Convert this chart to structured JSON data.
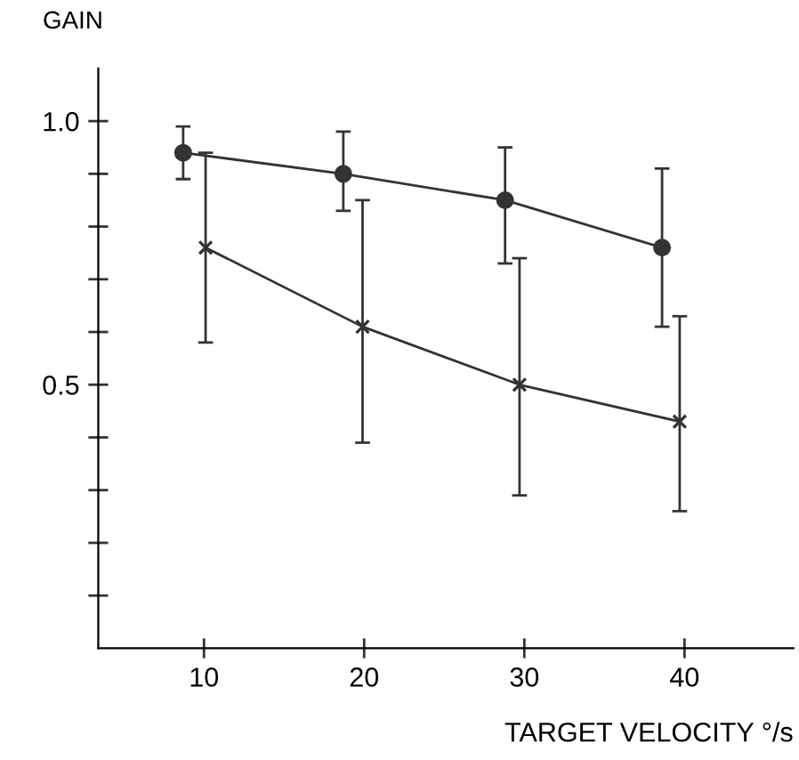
{
  "chart_data": {
    "type": "line",
    "xlabel": "TARGET VELOCITY °/s",
    "ylabel": "GAIN",
    "xlim": [
      3.4,
      46.8
    ],
    "xticks": [
      10,
      20,
      30,
      40
    ],
    "ylim": [
      0,
      1.1
    ],
    "yticks": [
      {
        "value": 0.1,
        "label": null
      },
      {
        "value": 0.2,
        "label": null
      },
      {
        "value": 0.3,
        "label": null
      },
      {
        "value": 0.4,
        "label": null
      },
      {
        "value": 0.5,
        "label": "0.5"
      },
      {
        "value": 0.6,
        "label": null
      },
      {
        "value": 0.7,
        "label": null
      },
      {
        "value": 0.8,
        "label": null
      },
      {
        "value": 0.9,
        "label": null
      },
      {
        "value": 1.0,
        "label": "1.0"
      }
    ],
    "grid": false,
    "legend": false,
    "series": [
      {
        "color": "#333333",
        "marker": "circle",
        "x": [
          8.7,
          18.7,
          28.8,
          38.6
        ],
        "values": [
          0.94,
          0.9,
          0.85,
          0.76
        ],
        "errors": [
          [
            0.89,
            0.99
          ],
          [
            0.83,
            0.98
          ],
          [
            0.73,
            0.95
          ],
          [
            0.61,
            0.91
          ]
        ]
      },
      {
        "color": "#333333",
        "marker": "cross",
        "x": [
          10.1,
          19.9,
          29.7,
          39.7
        ],
        "values": [
          0.76,
          0.61,
          0.5,
          0.43
        ],
        "errors": [
          [
            0.58,
            0.94
          ],
          [
            0.39,
            0.85
          ],
          [
            0.29,
            0.74
          ],
          [
            0.26,
            0.63
          ]
        ]
      }
    ]
  }
}
